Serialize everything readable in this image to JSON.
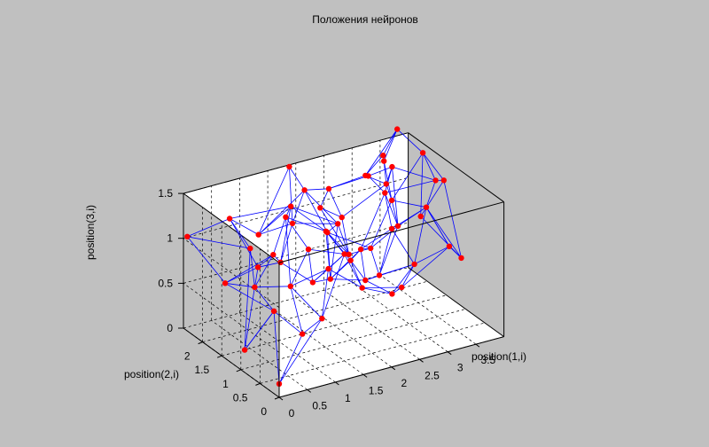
{
  "chart_data": {
    "type": "scatter3d",
    "title": "Положения нейронов",
    "xlabel": "position(1,i)",
    "ylabel": "position(2,i)",
    "zlabel": "position(3,i)",
    "xlim": [
      0,
      4
    ],
    "ylim": [
      0,
      2.5
    ],
    "zlim": [
      0,
      1.5
    ],
    "xticks": [
      "0",
      "0.5",
      "1",
      "1.5",
      "2",
      "2.5",
      "3",
      "3.5"
    ],
    "yticks": [
      "0",
      "0.5",
      "1",
      "1.5",
      "2"
    ],
    "zticks": [
      "0",
      "0.5",
      "1",
      "1.5"
    ],
    "grid": true,
    "box": true,
    "colors": {
      "background": "#c0c0c0",
      "axes_face": "#ffffff",
      "points": "#ff0000",
      "links": "#0000ff",
      "grid": "#000000"
    },
    "points": [
      [
        0.0,
        0.0,
        0.15
      ],
      [
        0.55,
        0.2,
        0.55
      ],
      [
        1.0,
        0.35,
        0.6
      ],
      [
        0.35,
        0.65,
        0.7
      ],
      [
        0.85,
        0.95,
        0.8
      ],
      [
        1.25,
        0.55,
        1.05
      ],
      [
        0.0,
        0.9,
        0.25
      ],
      [
        1.1,
        0.85,
        1.2
      ],
      [
        1.4,
        0.35,
        1.25
      ],
      [
        0.45,
        1.3,
        0.75
      ],
      [
        0.9,
        1.15,
        1.5
      ],
      [
        0.2,
        1.05,
        1.3
      ],
      [
        0.95,
        1.55,
        0.95
      ],
      [
        1.45,
        1.25,
        0.65
      ],
      [
        1.15,
        1.65,
        0.8
      ],
      [
        0.55,
        2.1,
        1.25
      ],
      [
        1.4,
        1.75,
        1.35
      ],
      [
        0.3,
        1.85,
        0.65
      ],
      [
        0.0,
        2.4,
        1.05
      ],
      [
        0.85,
        1.8,
        0.75
      ],
      [
        1.9,
        1.45,
        0.55
      ],
      [
        1.65,
        1.2,
        1.2
      ],
      [
        2.25,
        1.05,
        0.6
      ],
      [
        1.85,
        0.85,
        0.95
      ],
      [
        2.35,
        0.5,
        0.6
      ],
      [
        1.75,
        0.4,
        0.8
      ],
      [
        2.1,
        0.95,
        1.0
      ],
      [
        2.55,
        0.8,
        1.2
      ],
      [
        2.6,
        1.2,
        0.55
      ],
      [
        2.05,
        1.75,
        0.95
      ],
      [
        1.2,
        2.3,
        0.9
      ],
      [
        2.85,
        0.65,
        0.8
      ],
      [
        3.3,
        0.4,
        1.0
      ],
      [
        3.65,
        0.6,
        0.75
      ],
      [
        2.65,
        1.5,
        0.75
      ],
      [
        3.0,
        1.3,
        1.0
      ],
      [
        3.3,
        1.0,
        1.25
      ],
      [
        3.1,
        1.6,
        1.55
      ],
      [
        3.5,
        1.05,
        1.5
      ],
      [
        3.2,
        1.9,
        1.25
      ],
      [
        3.85,
        1.35,
        1.35
      ],
      [
        3.0,
        2.15,
        1.3
      ],
      [
        2.45,
        2.3,
        1.2
      ],
      [
        3.3,
        1.9,
        1.05
      ],
      [
        2.75,
        2.4,
        0.8
      ],
      [
        2.5,
        1.85,
        0.6
      ],
      [
        1.95,
        2.2,
        1.3
      ],
      [
        3.35,
        2.2,
        1.45
      ],
      [
        3.6,
        2.2,
        1.7
      ],
      [
        1.85,
        2.45,
        1.5
      ],
      [
        3.5,
        2.4,
        1.3
      ],
      [
        2.95,
        2.0,
        1.35
      ],
      [
        2.4,
        2.45,
        0.95
      ],
      [
        3.75,
        1.75,
        1.55
      ],
      [
        2.7,
        1.2,
        1.45
      ],
      [
        2.1,
        1.55,
        1.1
      ],
      [
        1.6,
        2.0,
        1.05
      ],
      [
        3.95,
        2.1,
        0.7
      ],
      [
        2.35,
        0.25,
        0.75
      ]
    ],
    "links": [
      [
        0,
        1
      ],
      [
        1,
        2
      ],
      [
        0,
        3
      ],
      [
        3,
        6
      ],
      [
        1,
        3
      ],
      [
        1,
        4
      ],
      [
        2,
        4
      ],
      [
        2,
        5
      ],
      [
        4,
        5
      ],
      [
        4,
        7
      ],
      [
        5,
        8
      ],
      [
        7,
        8
      ],
      [
        3,
        9
      ],
      [
        9,
        4
      ],
      [
        4,
        10
      ],
      [
        10,
        7
      ],
      [
        9,
        11
      ],
      [
        11,
        6
      ],
      [
        6,
        3
      ],
      [
        11,
        15
      ],
      [
        9,
        12
      ],
      [
        12,
        10
      ],
      [
        10,
        16
      ],
      [
        16,
        15
      ],
      [
        12,
        14
      ],
      [
        14,
        13
      ],
      [
        13,
        8
      ],
      [
        13,
        5
      ],
      [
        12,
        19
      ],
      [
        19,
        17
      ],
      [
        17,
        9
      ],
      [
        17,
        18
      ],
      [
        18,
        15
      ],
      [
        18,
        11
      ],
      [
        15,
        19
      ],
      [
        19,
        14
      ],
      [
        14,
        16
      ],
      [
        13,
        20
      ],
      [
        20,
        21
      ],
      [
        21,
        16
      ],
      [
        21,
        8
      ],
      [
        20,
        22
      ],
      [
        22,
        23
      ],
      [
        23,
        25
      ],
      [
        25,
        24
      ],
      [
        24,
        22
      ],
      [
        23,
        21
      ],
      [
        25,
        8
      ],
      [
        25,
        5
      ],
      [
        26,
        27
      ],
      [
        26,
        23
      ],
      [
        22,
        26
      ],
      [
        27,
        31
      ],
      [
        28,
        31
      ],
      [
        28,
        22
      ],
      [
        28,
        27
      ],
      [
        24,
        31
      ],
      [
        31,
        32
      ],
      [
        32,
        33
      ],
      [
        33,
        36
      ],
      [
        36,
        32
      ],
      [
        31,
        36
      ],
      [
        29,
        20
      ],
      [
        29,
        21
      ],
      [
        29,
        34
      ],
      [
        34,
        28
      ],
      [
        34,
        35
      ],
      [
        35,
        36
      ],
      [
        35,
        37
      ],
      [
        37,
        38
      ],
      [
        38,
        36
      ],
      [
        38,
        40
      ],
      [
        40,
        33
      ],
      [
        40,
        53
      ],
      [
        53,
        38
      ],
      [
        37,
        39
      ],
      [
        39,
        41
      ],
      [
        41,
        42
      ],
      [
        42,
        46
      ],
      [
        46,
        49
      ],
      [
        49,
        30
      ],
      [
        30,
        16
      ],
      [
        30,
        46
      ],
      [
        46,
        29
      ],
      [
        43,
        35
      ],
      [
        43,
        39
      ],
      [
        43,
        53
      ],
      [
        44,
        45
      ],
      [
        45,
        34
      ],
      [
        45,
        29
      ],
      [
        44,
        52
      ],
      [
        52,
        42
      ],
      [
        44,
        39
      ],
      [
        47,
        48
      ],
      [
        48,
        53
      ],
      [
        47,
        41
      ],
      [
        47,
        50
      ],
      [
        50,
        48
      ],
      [
        50,
        43
      ],
      [
        51,
        37
      ],
      [
        51,
        41
      ],
      [
        51,
        42
      ],
      [
        54,
        27
      ],
      [
        54,
        35
      ],
      [
        54,
        37
      ],
      [
        55,
        20
      ],
      [
        55,
        29
      ],
      [
        55,
        46
      ],
      [
        56,
        30
      ],
      [
        56,
        14
      ],
      [
        56,
        55
      ],
      [
        57,
        40
      ],
      [
        57,
        33
      ],
      [
        57,
        53
      ],
      [
        58,
        24
      ],
      [
        58,
        25
      ],
      [
        58,
        32
      ],
      [
        2,
        8
      ],
      [
        0,
        2
      ],
      [
        6,
        9
      ],
      [
        7,
        13
      ],
      [
        12,
        17
      ],
      [
        10,
        21
      ],
      [
        15,
        30
      ],
      [
        16,
        55
      ],
      [
        20,
        26
      ],
      [
        26,
        34
      ],
      [
        26,
        54
      ],
      [
        27,
        36
      ],
      [
        28,
        35
      ],
      [
        32,
        36
      ],
      [
        34,
        43
      ],
      [
        39,
        50
      ],
      [
        41,
        48
      ],
      [
        42,
        44
      ],
      [
        45,
        55
      ],
      [
        46,
        56
      ],
      [
        49,
        56
      ],
      [
        51,
        54
      ],
      [
        52,
        45
      ],
      [
        43,
        36
      ],
      [
        54,
        38
      ],
      [
        31,
        58
      ],
      [
        23,
        20
      ],
      [
        22,
        31
      ],
      [
        3,
        17
      ],
      [
        9,
        19
      ]
    ]
  }
}
